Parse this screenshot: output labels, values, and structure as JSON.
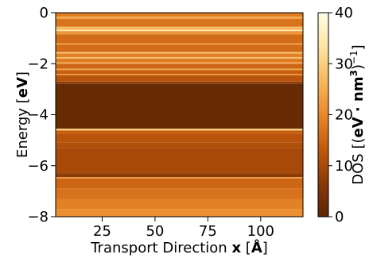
{
  "chart_data": {
    "type": "heatmap",
    "title": "",
    "xlabel": {
      "prefix": "Transport Direction ",
      "bold": "x",
      "suffix": " [",
      "bold_unit": "Å",
      "end": "]"
    },
    "ylabel": {
      "prefix": "Energy [",
      "bold": "eV",
      "end": "]"
    },
    "colorbar_label": {
      "prefix": "DOS [(",
      "bold": "eV · nm",
      "sup": "3",
      "end": ")",
      "sup2": "−1",
      "close": "]"
    },
    "xlim": [
      3,
      120
    ],
    "ylim": [
      -8,
      0
    ],
    "xticks": [
      25,
      50,
      75,
      100
    ],
    "xtick_labels": [
      "25",
      "50",
      "75",
      "100"
    ],
    "yticks": [
      0,
      -2,
      -4,
      -6,
      -8
    ],
    "ytick_labels": [
      "0",
      "−2",
      "−4",
      "−6",
      "−8"
    ],
    "colorbar": {
      "range": [
        0,
        40
      ],
      "ticks": [
        0,
        10,
        20,
        30,
        40
      ],
      "tick_labels": [
        "0",
        "10",
        "20",
        "30",
        "40"
      ],
      "colormap": "YlOrBr-like (dark brown → orange → cream)",
      "colors": [
        "#5a2605",
        "#8a3a06",
        "#c35a0c",
        "#e9882b",
        "#f7b85c",
        "#fde6a2",
        "#fffce6"
      ]
    },
    "bands_note_energy_eV_vs_dos": [
      {
        "e_top": 0.0,
        "e_bottom": -0.15,
        "dos": 18
      },
      {
        "e_top": -0.15,
        "e_bottom": -0.25,
        "dos": 24
      },
      {
        "e_top": -0.25,
        "e_bottom": -0.55,
        "dos": 17
      },
      {
        "e_top": -0.55,
        "e_bottom": -0.68,
        "dos": 27
      },
      {
        "e_top": -0.68,
        "e_bottom": -0.72,
        "dos": 36
      },
      {
        "e_top": -0.72,
        "e_bottom": -0.85,
        "dos": 22
      },
      {
        "e_top": -0.85,
        "e_bottom": -1.2,
        "dos": 16
      },
      {
        "e_top": -1.2,
        "e_bottom": -1.25,
        "dos": 24
      },
      {
        "e_top": -1.25,
        "e_bottom": -1.55,
        "dos": 16
      },
      {
        "e_top": -1.55,
        "e_bottom": -1.6,
        "dos": 30
      },
      {
        "e_top": -1.6,
        "e_bottom": -1.75,
        "dos": 19
      },
      {
        "e_top": -1.75,
        "e_bottom": -1.8,
        "dos": 28
      },
      {
        "e_top": -1.8,
        "e_bottom": -1.95,
        "dos": 18
      },
      {
        "e_top": -1.95,
        "e_bottom": -2.0,
        "dos": 26
      },
      {
        "e_top": -2.0,
        "e_bottom": -2.2,
        "dos": 15
      },
      {
        "e_top": -2.2,
        "e_bottom": -2.25,
        "dos": 24
      },
      {
        "e_top": -2.25,
        "e_bottom": -2.4,
        "dos": 14
      },
      {
        "e_top": -2.4,
        "e_bottom": -2.45,
        "dos": 22
      },
      {
        "e_top": -2.45,
        "e_bottom": -2.7,
        "dos": 12
      },
      {
        "e_top": -2.7,
        "e_bottom": -2.78,
        "dos": 8
      },
      {
        "e_top": -2.78,
        "e_bottom": -4.55,
        "dos": 2
      },
      {
        "e_top": -4.55,
        "e_bottom": -4.62,
        "dos": 30
      },
      {
        "e_top": -4.62,
        "e_bottom": -4.75,
        "dos": 14
      },
      {
        "e_top": -4.75,
        "e_bottom": -5.1,
        "dos": 12
      },
      {
        "e_top": -5.1,
        "e_bottom": -5.3,
        "dos": 11
      },
      {
        "e_top": -5.3,
        "e_bottom": -6.3,
        "dos": 10
      },
      {
        "e_top": -6.3,
        "e_bottom": -6.45,
        "dos": 7
      },
      {
        "e_top": -6.45,
        "e_bottom": -6.5,
        "dos": 22
      },
      {
        "e_top": -6.5,
        "e_bottom": -6.9,
        "dos": 15
      },
      {
        "e_top": -6.9,
        "e_bottom": -7.3,
        "dos": 17
      },
      {
        "e_top": -7.3,
        "e_bottom": -7.7,
        "dos": 19
      },
      {
        "e_top": -7.7,
        "e_bottom": -8.0,
        "dos": 21
      }
    ]
  }
}
